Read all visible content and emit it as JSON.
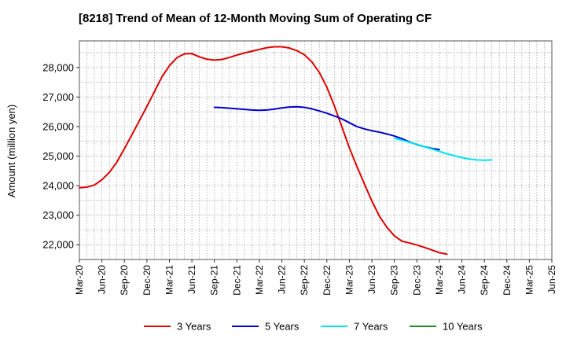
{
  "chart_data": {
    "type": "line",
    "title": "[8218]  Trend of Mean of 12-Month Moving Sum of Operating CF",
    "xlabel": "",
    "ylabel": "Amount (million yen)",
    "ylim": [
      21500,
      28900
    ],
    "yticks": [
      22000,
      23000,
      24000,
      25000,
      26000,
      27000,
      28000
    ],
    "ytick_labels": [
      "22,000",
      "23,000",
      "24,000",
      "25,000",
      "26,000",
      "27,000",
      "28,000"
    ],
    "xtick_labels": [
      "Mar-20",
      "Jun-20",
      "Sep-20",
      "Dec-20",
      "Mar-21",
      "Jun-21",
      "Sep-21",
      "Dec-21",
      "Mar-22",
      "Jun-22",
      "Sep-22",
      "Dec-22",
      "Mar-23",
      "Jun-23",
      "Sep-23",
      "Dec-23",
      "Mar-24",
      "Jun-24",
      "Sep-24",
      "Dec-24",
      "Mar-25",
      "Jun-25"
    ],
    "grid": true,
    "legend_position": "bottom",
    "series": [
      {
        "name": "3 Years",
        "color": "#e00000",
        "start_index": 0,
        "values": [
          23930,
          23950,
          24020,
          24200,
          24450,
          24800,
          25250,
          25720,
          26200,
          26680,
          27180,
          27680,
          28060,
          28330,
          28460,
          28470,
          28360,
          28280,
          28250,
          28270,
          28340,
          28420,
          28490,
          28550,
          28610,
          28670,
          28700,
          28700,
          28660,
          28570,
          28430,
          28190,
          27830,
          27330,
          26700,
          25990,
          25280,
          24650,
          24060,
          23480,
          22970,
          22590,
          22300,
          22120,
          22060,
          21990,
          21910,
          21820,
          21730,
          21680
        ]
      },
      {
        "name": "5 Years",
        "color": "#0000cc",
        "start_index": 18,
        "values": [
          26650,
          26640,
          26620,
          26600,
          26580,
          26560,
          26550,
          26560,
          26590,
          26630,
          26660,
          26670,
          26650,
          26600,
          26530,
          26450,
          26360,
          26260,
          26130,
          26000,
          25920,
          25860,
          25810,
          25750,
          25680,
          25590,
          25480,
          25390,
          25320,
          25260,
          25220
        ]
      },
      {
        "name": "7 Years",
        "color": "#00e5ee",
        "start_index": 42,
        "values": [
          25600,
          25540,
          25470,
          25400,
          25320,
          25240,
          25160,
          25080,
          25010,
          24950,
          24900,
          24870,
          24860,
          24870
        ]
      },
      {
        "name": "10 Years",
        "color": "#228b22",
        "start_index": 0,
        "values": []
      }
    ]
  }
}
